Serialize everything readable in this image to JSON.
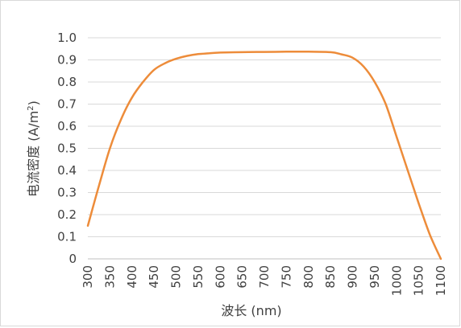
{
  "chart_data": {
    "type": "line",
    "title": "",
    "xlabel": "波长 (nm)",
    "ylabel": {
      "main": "电流密度 (A/m",
      "sup": "2",
      "close": ")"
    },
    "x_ticks": [
      "300",
      "350",
      "400",
      "450",
      "500",
      "550",
      "600",
      "650",
      "700",
      "750",
      "800",
      "850",
      "900",
      "950",
      "1000",
      "1050",
      "1100"
    ],
    "y_ticks": [
      "0",
      "0.1",
      "0.2",
      "0.3",
      "0.4",
      "0.5",
      "0.6",
      "0.7",
      "0.8",
      "0.9",
      "1.0"
    ],
    "xlim": [
      300,
      1100
    ],
    "ylim": [
      0,
      1.0
    ],
    "grid": "horizontal",
    "legend": "none",
    "series": [
      {
        "color": "#ed8c3a",
        "x": [
          300,
          325,
          350,
          375,
          400,
          425,
          450,
          475,
          500,
          525,
          550,
          575,
          600,
          650,
          700,
          750,
          800,
          850,
          875,
          900,
          925,
          950,
          975,
          1000,
          1025,
          1050,
          1075,
          1100
        ],
        "y": [
          0.15,
          0.33,
          0.5,
          0.63,
          0.73,
          0.8,
          0.855,
          0.885,
          0.905,
          0.918,
          0.926,
          0.93,
          0.933,
          0.935,
          0.936,
          0.937,
          0.937,
          0.935,
          0.925,
          0.91,
          0.87,
          0.8,
          0.7,
          0.55,
          0.4,
          0.25,
          0.11,
          0.0
        ]
      }
    ]
  }
}
